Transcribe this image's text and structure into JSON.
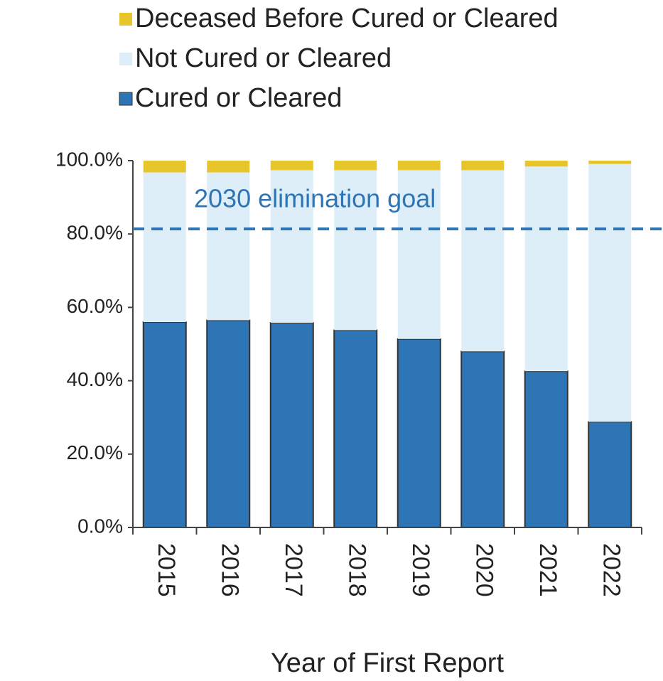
{
  "chart_data": {
    "type": "stacked_bar",
    "x_label": "Year of First Report",
    "categories": [
      "2015",
      "2016",
      "2017",
      "2018",
      "2019",
      "2020",
      "2021",
      "2022"
    ],
    "series": [
      {
        "name": "Cured or Cleared",
        "color": "#2e75b6",
        "values": [
          56.0,
          56.5,
          55.8,
          53.8,
          51.4,
          48.0,
          42.6,
          28.8
        ]
      },
      {
        "name": "Not Cured or Cleared",
        "color": "#ddeef9",
        "values": [
          40.8,
          40.3,
          41.6,
          43.6,
          46.0,
          49.4,
          55.8,
          70.3
        ]
      },
      {
        "name": "Deceased Before Cured or Cleared",
        "color": "#e8c52a",
        "values": [
          3.2,
          3.2,
          2.6,
          2.6,
          2.6,
          2.6,
          1.6,
          0.9
        ]
      }
    ],
    "goal": {
      "label": "2030 elimination goal",
      "value": 81.4,
      "color": "#2e75b6"
    },
    "ylim": [
      0,
      100
    ],
    "yticks": [
      {
        "value": 0,
        "label": "0.0%"
      },
      {
        "value": 20,
        "label": "20.0%"
      },
      {
        "value": 40,
        "label": "40.0%"
      },
      {
        "value": 60,
        "label": "60.0%"
      },
      {
        "value": 80,
        "label": "80.0%"
      },
      {
        "value": 100,
        "label": "100.0%"
      }
    ]
  }
}
